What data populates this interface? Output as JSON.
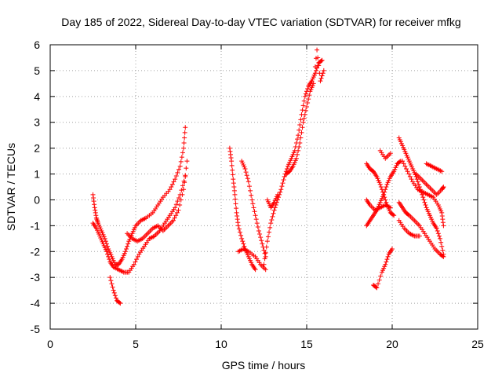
{
  "chart_data": {
    "type": "scatter",
    "title": "Day 185 of 2022, Sidereal Day-to-day VTEC variation (SDTVAR) for receiver mfkg",
    "xlabel": "GPS time / hours",
    "ylabel": "SDTVAR / TECUs",
    "xlim": [
      0,
      25
    ],
    "ylim": [
      -5,
      6
    ],
    "x_ticks": [
      0,
      5,
      10,
      15,
      20,
      25
    ],
    "y_ticks": [
      -5,
      -4,
      -3,
      -2,
      -1,
      0,
      1,
      2,
      3,
      4,
      5,
      6
    ],
    "x_tick_labels": [
      "0",
      "5",
      "10",
      "15",
      "20",
      "25"
    ],
    "y_tick_labels": [
      "-5",
      "-4",
      "-3",
      "-2",
      "-1",
      "0",
      "1",
      "2",
      "3",
      "4",
      "5",
      "6"
    ],
    "grid": true,
    "marker": "plus",
    "marker_color": "#ff0000",
    "series": [
      {
        "values": [
          [
            2.5,
            0.2
          ],
          [
            2.6,
            -0.3
          ],
          [
            2.7,
            -0.7
          ],
          [
            2.8,
            -0.9
          ],
          [
            3.0,
            -1.2
          ],
          [
            3.2,
            -1.5
          ],
          [
            3.4,
            -1.9
          ],
          [
            3.6,
            -2.2
          ],
          [
            3.8,
            -2.5
          ],
          [
            4.0,
            -2.5
          ],
          [
            4.2,
            -2.3
          ],
          [
            4.4,
            -2.0
          ],
          [
            4.6,
            -1.6
          ],
          [
            4.8,
            -1.3
          ],
          [
            5.0,
            -1.0
          ],
          [
            5.3,
            -0.8
          ],
          [
            5.6,
            -0.7
          ],
          [
            6.0,
            -0.5
          ],
          [
            6.3,
            -0.2
          ],
          [
            6.6,
            0.1
          ],
          [
            7.0,
            0.4
          ],
          [
            7.3,
            0.8
          ],
          [
            7.6,
            1.3
          ],
          [
            7.8,
            2.0
          ],
          [
            7.9,
            2.8
          ]
        ]
      },
      {
        "values": [
          [
            2.5,
            -0.9
          ],
          [
            2.7,
            -1.1
          ],
          [
            2.9,
            -1.4
          ],
          [
            3.1,
            -1.7
          ],
          [
            3.3,
            -2.0
          ],
          [
            3.5,
            -2.4
          ],
          [
            3.7,
            -2.6
          ],
          [
            4.0,
            -2.7
          ],
          [
            4.3,
            -2.8
          ],
          [
            4.6,
            -2.8
          ],
          [
            4.9,
            -2.5
          ],
          [
            5.2,
            -2.1
          ],
          [
            5.5,
            -1.8
          ],
          [
            5.8,
            -1.5
          ],
          [
            6.1,
            -1.4
          ],
          [
            6.4,
            -1.2
          ],
          [
            6.7,
            -0.9
          ],
          [
            7.0,
            -0.6
          ],
          [
            7.3,
            -0.3
          ],
          [
            7.6,
            0.2
          ],
          [
            7.9,
            0.9
          ]
        ]
      },
      {
        "values": [
          [
            3.5,
            -3.0
          ],
          [
            3.7,
            -3.5
          ],
          [
            3.9,
            -3.9
          ],
          [
            4.1,
            -4.0
          ]
        ]
      },
      {
        "values": [
          [
            4.5,
            -1.3
          ],
          [
            4.8,
            -1.5
          ],
          [
            5.1,
            -1.6
          ],
          [
            5.4,
            -1.5
          ],
          [
            5.7,
            -1.3
          ],
          [
            6.0,
            -1.1
          ],
          [
            6.3,
            -1.0
          ],
          [
            6.6,
            -1.2
          ],
          [
            6.9,
            -1.0
          ],
          [
            7.2,
            -0.8
          ],
          [
            7.5,
            -0.4
          ],
          [
            7.8,
            0.4
          ],
          [
            8.0,
            1.5
          ]
        ]
      },
      {
        "values": [
          [
            10.5,
            2.0
          ],
          [
            10.6,
            1.5
          ],
          [
            10.7,
            0.8
          ],
          [
            10.8,
            0.2
          ],
          [
            10.9,
            -0.5
          ],
          [
            11.0,
            -1.0
          ],
          [
            11.2,
            -1.5
          ],
          [
            11.4,
            -1.9
          ],
          [
            11.6,
            -2.2
          ],
          [
            11.8,
            -2.5
          ],
          [
            12.0,
            -2.7
          ]
        ]
      },
      {
        "values": [
          [
            11.2,
            1.5
          ],
          [
            11.4,
            1.2
          ],
          [
            11.6,
            0.7
          ],
          [
            11.8,
            0.0
          ],
          [
            12.0,
            -0.6
          ],
          [
            12.2,
            -1.2
          ],
          [
            12.4,
            -1.7
          ],
          [
            12.6,
            -2.2
          ]
        ]
      },
      {
        "values": [
          [
            11.0,
            -2.0
          ],
          [
            11.3,
            -1.9
          ],
          [
            11.6,
            -2.0
          ],
          [
            12.0,
            -2.2
          ],
          [
            12.3,
            -2.5
          ],
          [
            12.6,
            -2.7
          ]
        ]
      },
      {
        "values": [
          [
            12.5,
            -2.5
          ],
          [
            12.7,
            -1.6
          ],
          [
            12.9,
            -0.9
          ],
          [
            13.1,
            -0.4
          ],
          [
            13.3,
            0.0
          ],
          [
            13.5,
            0.4
          ],
          [
            13.7,
            0.9
          ],
          [
            13.9,
            1.3
          ],
          [
            14.1,
            1.6
          ],
          [
            14.3,
            1.9
          ],
          [
            14.5,
            2.5
          ],
          [
            14.7,
            3.3
          ],
          [
            14.9,
            4.0
          ],
          [
            15.1,
            4.4
          ],
          [
            15.3,
            4.6
          ],
          [
            15.5,
            4.9
          ],
          [
            15.7,
            5.3
          ],
          [
            15.9,
            5.4
          ]
        ]
      },
      {
        "values": [
          [
            12.7,
            0.0
          ],
          [
            12.9,
            -0.3
          ],
          [
            13.1,
            -0.1
          ],
          [
            13.3,
            0.2
          ]
        ]
      },
      {
        "values": [
          [
            13.8,
            1.0
          ],
          [
            14.0,
            1.1
          ],
          [
            14.2,
            1.3
          ],
          [
            14.4,
            1.6
          ],
          [
            14.6,
            2.2
          ],
          [
            14.8,
            3.0
          ],
          [
            15.0,
            3.6
          ],
          [
            15.2,
            4.2
          ],
          [
            15.4,
            4.5
          ],
          [
            15.6,
            5.8
          ],
          [
            15.8,
            4.6
          ],
          [
            16.0,
            5.0
          ]
        ]
      },
      {
        "values": [
          [
            18.5,
            1.4
          ],
          [
            18.7,
            1.2
          ],
          [
            18.9,
            1.1
          ],
          [
            19.1,
            0.9
          ],
          [
            19.3,
            0.6
          ],
          [
            19.5,
            0.2
          ],
          [
            19.7,
            -0.2
          ],
          [
            19.9,
            -0.5
          ],
          [
            20.1,
            -0.6
          ]
        ]
      },
      {
        "values": [
          [
            18.5,
            -1.0
          ],
          [
            18.7,
            -0.8
          ],
          [
            18.9,
            -0.6
          ],
          [
            19.1,
            -0.4
          ],
          [
            19.3,
            -0.1
          ],
          [
            19.5,
            0.2
          ],
          [
            19.7,
            0.6
          ],
          [
            19.9,
            0.9
          ],
          [
            20.1,
            1.1
          ],
          [
            20.3,
            1.4
          ],
          [
            20.5,
            1.5
          ]
        ]
      },
      {
        "values": [
          [
            18.5,
            0.0
          ],
          [
            18.7,
            -0.2
          ],
          [
            19.0,
            -0.4
          ],
          [
            19.3,
            -0.3
          ],
          [
            19.6,
            -0.2
          ],
          [
            19.9,
            -0.3
          ]
        ]
      },
      {
        "values": [
          [
            18.9,
            -3.3
          ],
          [
            19.1,
            -3.4
          ],
          [
            19.4,
            -2.8
          ],
          [
            19.6,
            -2.5
          ],
          [
            19.8,
            -2.1
          ],
          [
            20.0,
            -1.9
          ]
        ]
      },
      {
        "values": [
          [
            19.3,
            1.9
          ],
          [
            19.6,
            1.6
          ],
          [
            19.9,
            1.8
          ]
        ]
      },
      {
        "values": [
          [
            20.4,
            2.4
          ],
          [
            20.6,
            2.1
          ],
          [
            20.8,
            1.8
          ],
          [
            21.0,
            1.5
          ],
          [
            21.2,
            1.2
          ],
          [
            21.4,
            0.9
          ],
          [
            21.6,
            0.5
          ],
          [
            21.8,
            0.1
          ],
          [
            22.0,
            -0.3
          ],
          [
            22.2,
            -0.6
          ],
          [
            22.4,
            -0.9
          ],
          [
            22.6,
            -1.1
          ],
          [
            22.8,
            -1.5
          ],
          [
            23.0,
            -2.1
          ]
        ]
      },
      {
        "values": [
          [
            20.4,
            -0.1
          ],
          [
            20.6,
            -0.3
          ],
          [
            20.8,
            -0.5
          ],
          [
            21.0,
            -0.6
          ],
          [
            21.3,
            -0.8
          ],
          [
            21.6,
            -1.0
          ],
          [
            21.9,
            -1.3
          ],
          [
            22.2,
            -1.6
          ],
          [
            22.5,
            -1.9
          ],
          [
            22.8,
            -2.1
          ],
          [
            23.0,
            -2.2
          ]
        ]
      },
      {
        "values": [
          [
            20.4,
            -0.8
          ],
          [
            20.7,
            -1.1
          ],
          [
            21.0,
            -1.3
          ],
          [
            21.3,
            -1.4
          ],
          [
            21.6,
            -1.4
          ]
        ]
      },
      {
        "values": [
          [
            20.6,
            1.5
          ],
          [
            20.9,
            1.1
          ],
          [
            21.2,
            0.7
          ],
          [
            21.5,
            0.4
          ],
          [
            21.8,
            0.3
          ],
          [
            22.1,
            0.2
          ],
          [
            22.4,
            0.1
          ],
          [
            22.7,
            -0.2
          ],
          [
            22.9,
            -0.5
          ],
          [
            23.0,
            -1.0
          ]
        ]
      },
      {
        "values": [
          [
            21.4,
            1.0
          ],
          [
            21.7,
            0.8
          ],
          [
            22.0,
            0.6
          ],
          [
            22.3,
            0.4
          ],
          [
            22.6,
            0.2
          ],
          [
            22.9,
            0.4
          ],
          [
            23.0,
            0.5
          ]
        ]
      },
      {
        "values": [
          [
            22.0,
            1.4
          ],
          [
            22.3,
            1.3
          ],
          [
            22.6,
            1.2
          ],
          [
            22.9,
            1.1
          ]
        ]
      }
    ]
  }
}
